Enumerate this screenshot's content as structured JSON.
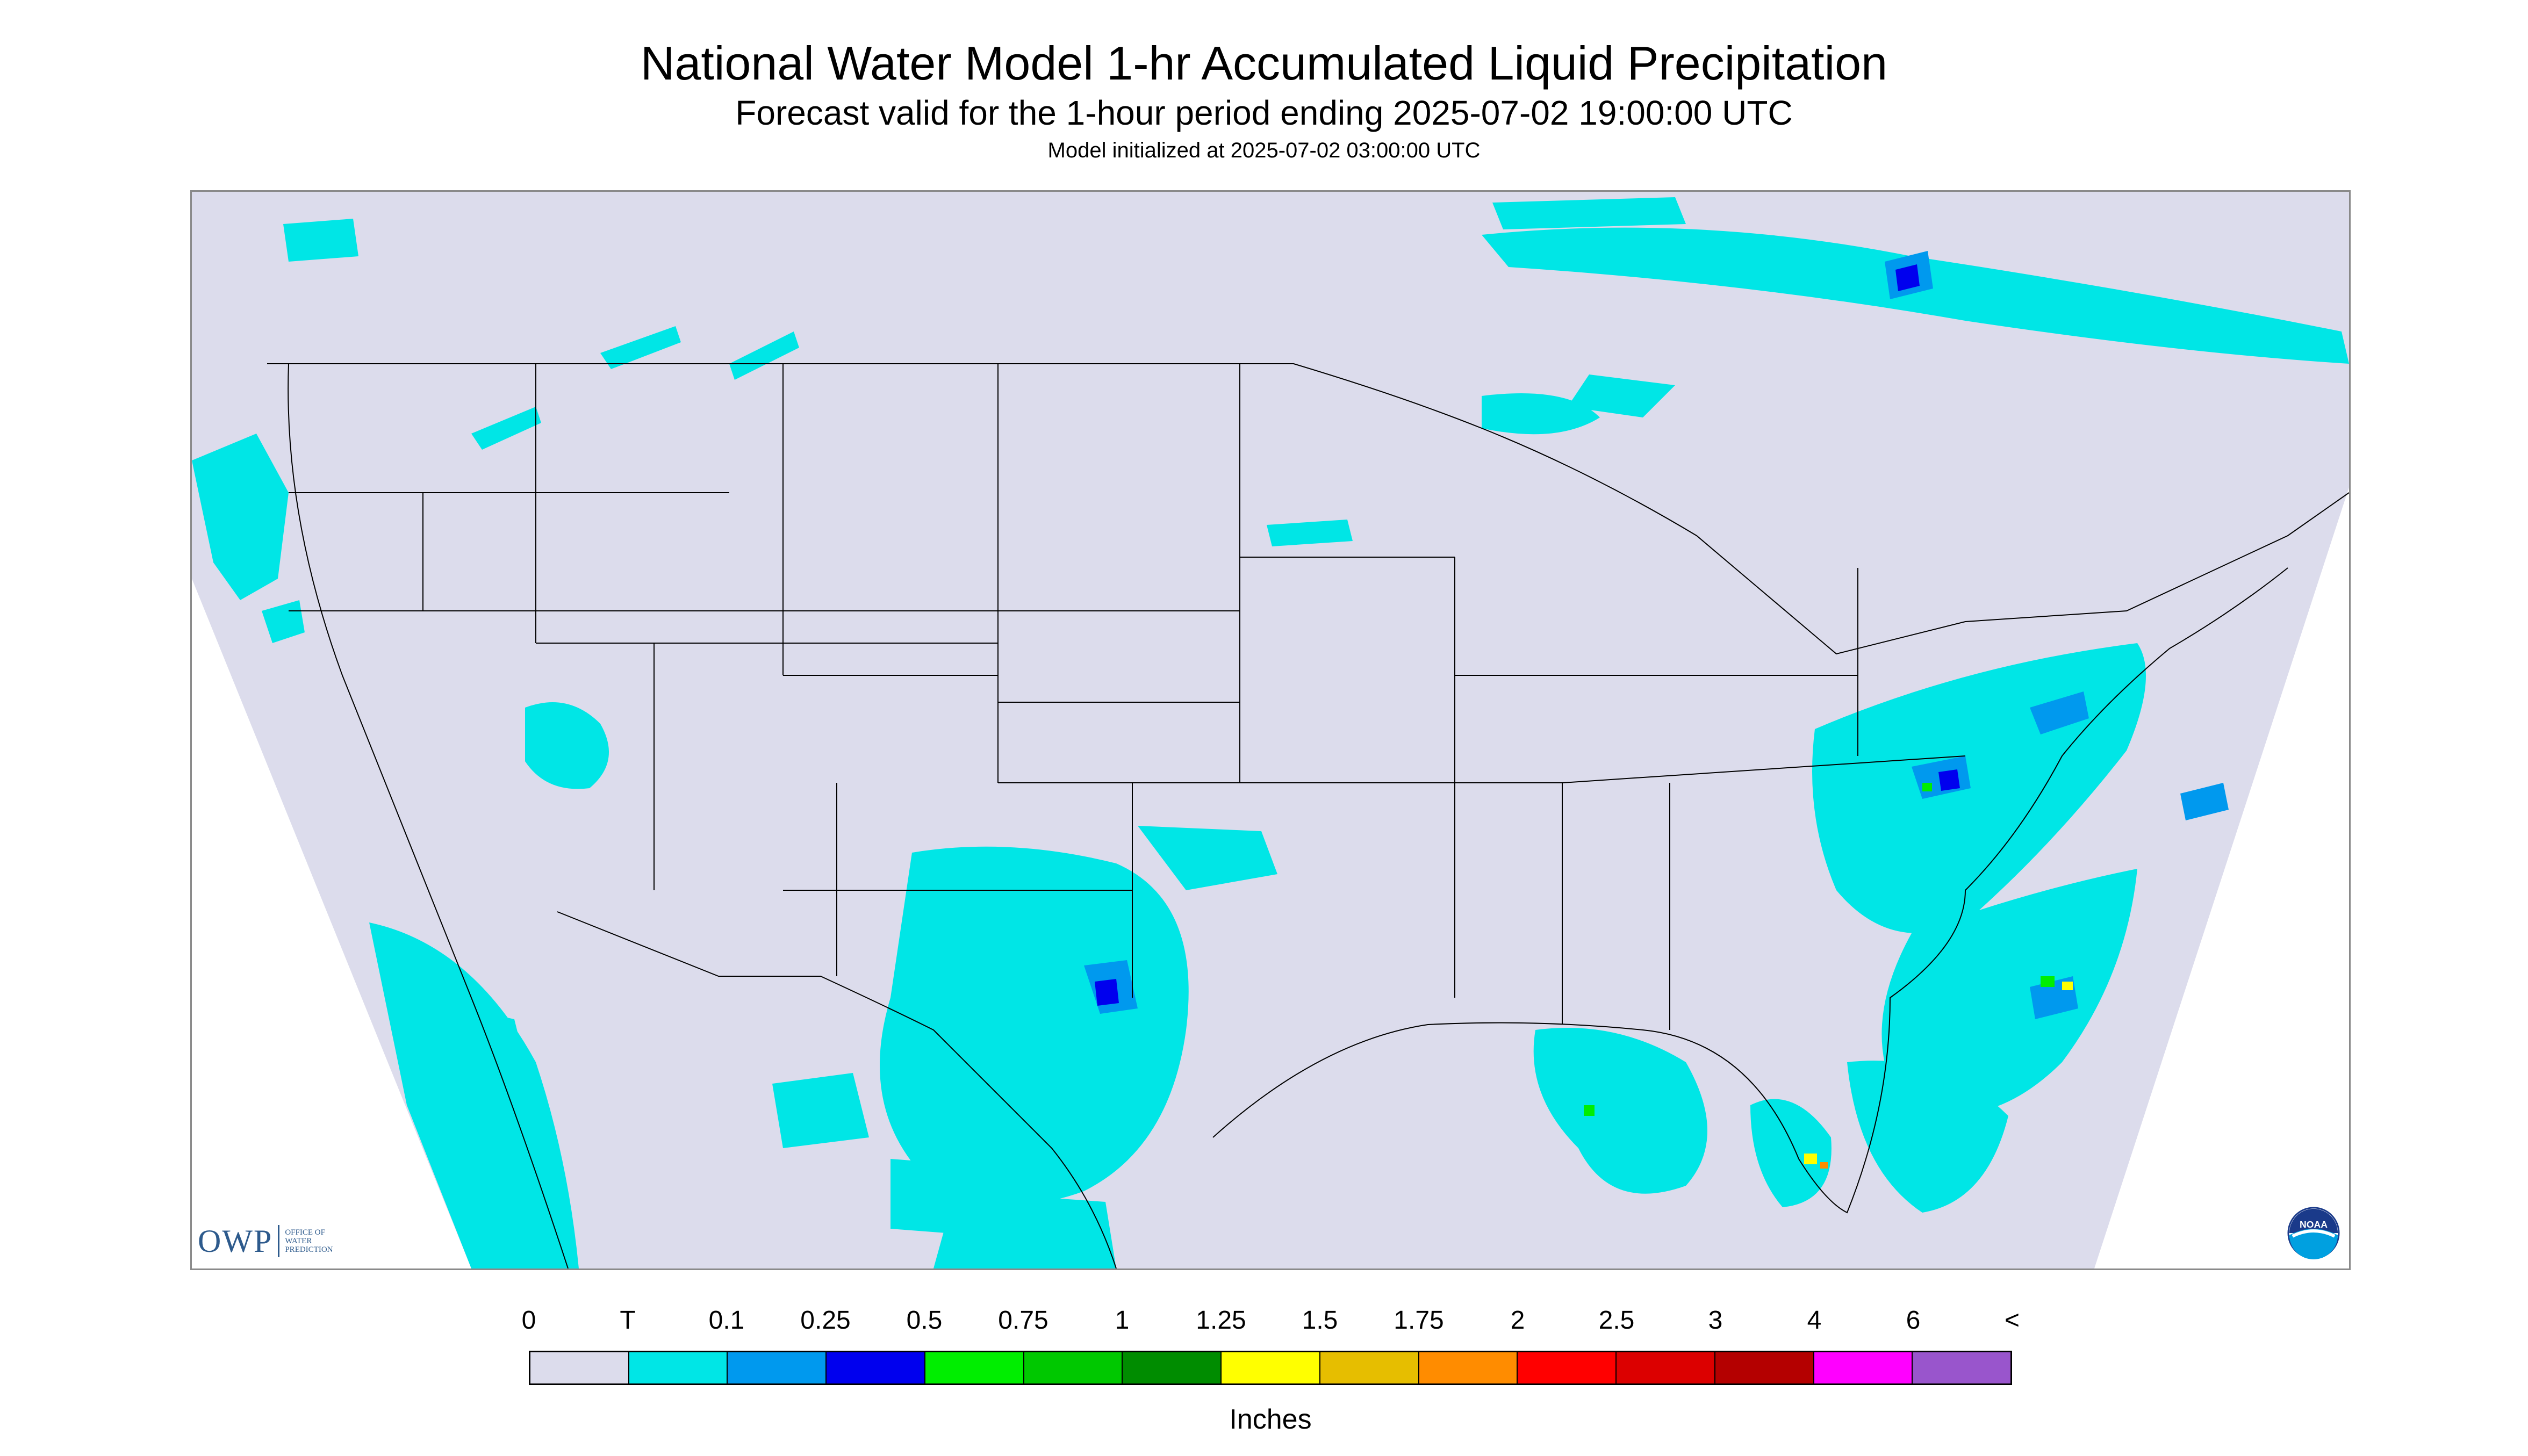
{
  "title": "National Water Model 1-hr Accumulated Liquid Precipitation",
  "subtitle": "Forecast valid for the 1-hour period ending 2025-07-02 19:00:00 UTC",
  "init_line": "Model initialized at 2025-07-02 03:00:00 UTC",
  "map": {
    "background_color": "#dcdcec",
    "outside_color": "#ffffff",
    "boundary_color": "#000000",
    "region": "CONUS"
  },
  "logos": {
    "owp": {
      "text": "OWP",
      "sub_line1": "OFFICE OF",
      "sub_line2": "WATER",
      "sub_line3": "PREDICTION"
    },
    "noaa": {
      "text": "NOAA"
    }
  },
  "legend": {
    "labels": [
      "0",
      "T",
      "0.1",
      "0.25",
      "0.5",
      "0.75",
      "1",
      "1.25",
      "1.5",
      "1.75",
      "2",
      "2.5",
      "3",
      "4",
      "6",
      "<"
    ],
    "colors": [
      "#dcdcec",
      "#00e6e6",
      "#0099ee",
      "#0000ee",
      "#00ee00",
      "#00c800",
      "#008c00",
      "#ffff00",
      "#e6be00",
      "#ff8c00",
      "#ff0000",
      "#dc0000",
      "#b40000",
      "#ff00ff",
      "#9955cc"
    ],
    "units": "Inches"
  },
  "precip_colors": {
    "trace": "#00e6e6",
    "light": "#0099ee",
    "moderate": "#0000ee",
    "heavy": "#00ee00",
    "heavier": "#ffff00",
    "extreme": "#ff8c00"
  }
}
